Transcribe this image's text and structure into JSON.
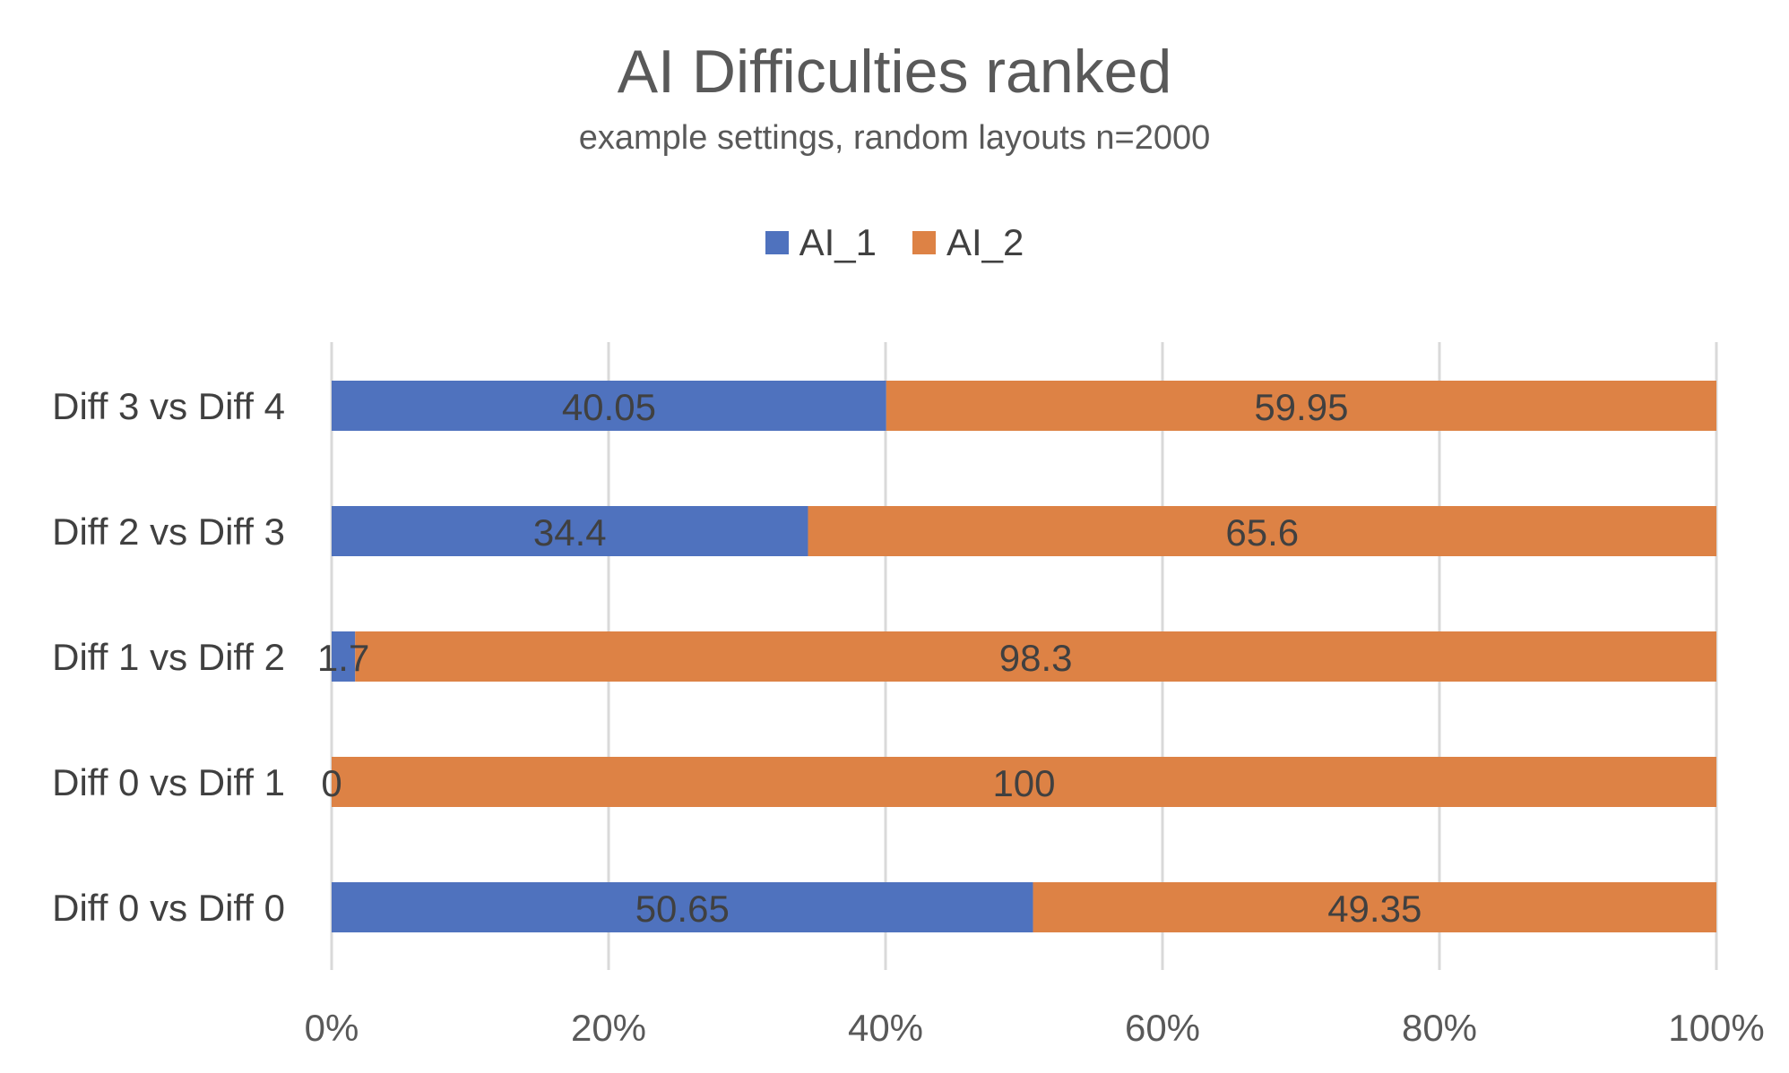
{
  "chart_data": {
    "type": "bar",
    "orientation": "horizontal",
    "stacked": "percent",
    "title": "AI Difficulties ranked",
    "subtitle": "example settings, random layouts n=2000",
    "categories": [
      "Diff 3 vs Diff 4",
      "Diff 2 vs Diff 3",
      "Diff 1 vs Diff 2",
      "Diff 0 vs Diff 1",
      "Diff 0 vs Diff 0"
    ],
    "series": [
      {
        "name": "AI_1",
        "color": "#4F72BE",
        "values": [
          40.05,
          34.4,
          1.7,
          0,
          50.65
        ]
      },
      {
        "name": "AI_2",
        "color": "#DD8245",
        "values": [
          59.95,
          65.6,
          98.3,
          100,
          49.35
        ]
      }
    ],
    "xlim": [
      0,
      100
    ],
    "x_ticks": [
      "0%",
      "20%",
      "40%",
      "60%",
      "80%",
      "100%"
    ],
    "grid": true,
    "legend_position": "top"
  }
}
